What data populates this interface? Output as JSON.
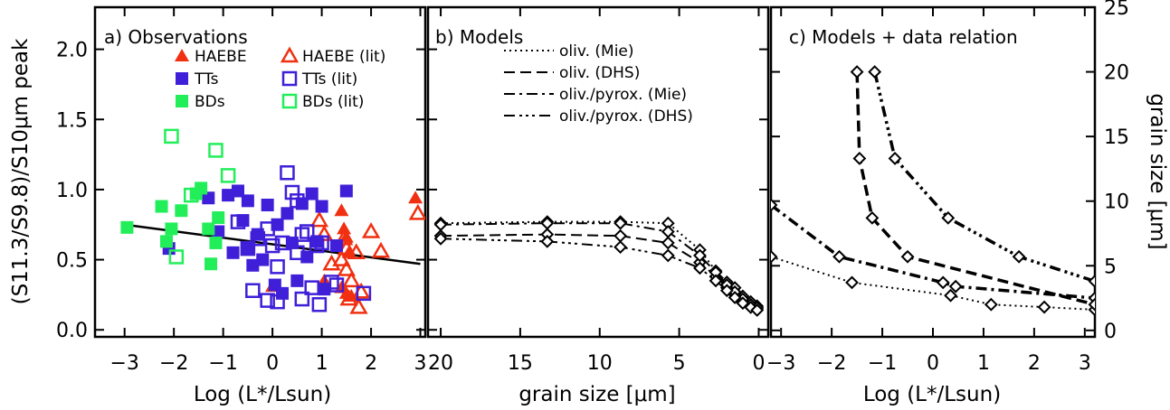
{
  "chart_data": [
    {
      "type": "scatter",
      "title": "a) Observations",
      "xlabel": "Log (L*/Lsun)",
      "ylabel": "(S11.3/S9.8)/S10μm peak",
      "xlim": [
        -3.6,
        3.1
      ],
      "ylim": [
        -0.05,
        2.3
      ],
      "xticks": [
        -3,
        -2,
        -1,
        0,
        1,
        2,
        3
      ],
      "yticks": [
        0.0,
        0.5,
        1.0,
        1.5,
        2.0
      ],
      "legend_position": "top",
      "fit_line": {
        "x": [
          -3.0,
          3.0
        ],
        "y": [
          0.75,
          0.47
        ]
      },
      "series": [
        {
          "name": "HAEBE",
          "marker": "filled-triangle",
          "color": "#f03010",
          "x": [
            1.4,
            1.45,
            1.5,
            2.9,
            1.05,
            0.0,
            1.4,
            1.5,
            1.6,
            1.55
          ],
          "y": [
            0.85,
            0.72,
            0.66,
            0.94,
            0.35,
            0.31,
            0.3,
            0.26,
            0.24,
            0.55
          ]
        },
        {
          "name": "HAEBE (lit)",
          "marker": "open-triangle",
          "color": "#f03010",
          "x": [
            0.95,
            1.05,
            1.45,
            1.5,
            1.7,
            2.2,
            2.0,
            2.95,
            1.2,
            1.4,
            1.5,
            1.6,
            1.8,
            1.75,
            1.55
          ],
          "y": [
            0.78,
            0.68,
            0.65,
            0.58,
            0.55,
            0.56,
            0.7,
            0.83,
            0.47,
            0.5,
            0.43,
            0.35,
            0.27,
            0.16,
            0.22
          ]
        },
        {
          "name": "TTs",
          "marker": "filled-square",
          "color": "#3f1fd8",
          "x": [
            -1.3,
            -0.9,
            -0.7,
            -0.5,
            -0.1,
            0.1,
            0.3,
            0.6,
            0.8,
            1.0,
            1.5,
            -0.3,
            0.4,
            -0.5,
            -0.8,
            -1.1,
            -2.1,
            0.05,
            0.2,
            1.05,
            -0.2,
            0.7,
            1.3,
            -0.6,
            0.5,
            0.9,
            -0.4
          ],
          "y": [
            0.94,
            0.96,
            0.99,
            0.92,
            0.89,
            0.75,
            0.83,
            0.9,
            0.97,
            0.88,
            0.99,
            0.68,
            0.62,
            0.58,
            0.55,
            0.7,
            0.58,
            0.32,
            0.26,
            0.29,
            0.5,
            0.52,
            0.6,
            0.78,
            0.35,
            0.63,
            0.46
          ]
        },
        {
          "name": "TTs (lit)",
          "marker": "open-square",
          "color": "#3f1fd8",
          "x": [
            0.3,
            0.4,
            0.5,
            -0.1,
            -0.3,
            0.7,
            -0.7,
            0.0,
            0.2,
            0.6,
            0.9,
            1.0,
            -0.5,
            0.1,
            0.5,
            0.8,
            0.6,
            1.2,
            1.3,
            1.85,
            0.95,
            -0.4,
            -0.1,
            0.1
          ],
          "y": [
            1.12,
            0.98,
            0.92,
            0.72,
            0.65,
            0.7,
            0.77,
            0.6,
            0.62,
            0.68,
            0.6,
            0.62,
            0.58,
            0.45,
            0.55,
            0.3,
            0.22,
            0.34,
            0.32,
            0.26,
            0.18,
            0.28,
            0.21,
            0.2
          ]
        },
        {
          "name": "BDs",
          "marker": "filled-square",
          "color": "#22ee5a",
          "x": [
            -2.95,
            -2.25,
            -1.85,
            -1.55,
            -1.3,
            -1.25,
            -2.15,
            -1.1,
            -1.15,
            -1.45,
            -2.05
          ],
          "y": [
            0.73,
            0.88,
            0.85,
            0.97,
            0.72,
            0.47,
            0.63,
            0.8,
            0.62,
            1.01,
            0.72
          ]
        },
        {
          "name": "BDs (lit)",
          "marker": "open-square",
          "color": "#22ee5a",
          "x": [
            -2.05,
            -1.15,
            -0.9,
            -1.65,
            -1.95
          ],
          "y": [
            1.38,
            1.28,
            1.1,
            0.96,
            0.52
          ]
        }
      ]
    },
    {
      "type": "line",
      "title": "b) Models",
      "xlabel": "grain size [μm]",
      "xlim": [
        20.8,
        -0.6
      ],
      "ylim": [
        -0.05,
        2.3
      ],
      "xticks": [
        20,
        15,
        10,
        5,
        0
      ],
      "legend_position": "top-right",
      "series": [
        {
          "name": "oliv. (Mie)",
          "x": [
            20,
            13.3,
            8.7,
            5.7,
            3.7,
            2.7,
            2.0,
            1.5,
            1.0,
            0.5,
            0.1
          ],
          "y": [
            0.76,
            0.77,
            0.77,
            0.76,
            0.57,
            0.42,
            0.34,
            0.3,
            0.24,
            0.2,
            0.17
          ]
        },
        {
          "name": "oliv. (DHS)",
          "x": [
            20,
            13.3,
            8.7,
            5.7,
            3.7,
            2.7,
            2.0,
            1.5,
            1.0,
            0.5,
            0.1
          ],
          "y": [
            0.67,
            0.68,
            0.67,
            0.62,
            0.48,
            0.38,
            0.3,
            0.25,
            0.2,
            0.17,
            0.15
          ]
        },
        {
          "name": "oliv./pyrox. (Mie)",
          "x": [
            20,
            13.3,
            8.7,
            5.7,
            3.7,
            2.7,
            2.0,
            1.5,
            1.0,
            0.5,
            0.1
          ],
          "y": [
            0.75,
            0.76,
            0.76,
            0.7,
            0.53,
            0.41,
            0.32,
            0.27,
            0.22,
            0.18,
            0.16
          ]
        },
        {
          "name": "oliv./pyrox. (DHS)",
          "x": [
            20,
            13.3,
            8.7,
            5.7,
            3.7,
            2.7,
            2.0,
            1.5,
            1.0,
            0.5,
            0.1
          ],
          "y": [
            0.65,
            0.63,
            0.59,
            0.53,
            0.44,
            0.35,
            0.28,
            0.23,
            0.19,
            0.16,
            0.14
          ]
        }
      ]
    },
    {
      "type": "line",
      "title": "c) Models + data relation",
      "xlabel": "Log (L*/Lsun)",
      "ylabel": "grain size [μm]",
      "xlim": [
        -3.2,
        3.2
      ],
      "ylim": [
        -0.5,
        25
      ],
      "xticks": [
        -3,
        -2,
        -1,
        0,
        1,
        2,
        3
      ],
      "yticks": [
        0,
        5,
        10,
        15,
        20,
        25
      ],
      "series": [
        {
          "style": "dotted",
          "x": [
            -3.2,
            -1.6,
            0.35,
            1.15,
            2.2,
            3.2
          ],
          "y": [
            5.7,
            3.7,
            2.7,
            2.0,
            1.8,
            1.6
          ]
        },
        {
          "style": "dash-dot",
          "x": [
            -3.2,
            -1.85,
            0.2,
            0.45,
            3.2
          ],
          "y": [
            9.7,
            5.7,
            3.7,
            3.4,
            2.5
          ]
        },
        {
          "style": "dashed",
          "x": [
            -1.5,
            -1.45,
            -1.2,
            -0.5,
            3.2
          ],
          "y": [
            20.0,
            13.3,
            8.7,
            5.7,
            2.0
          ]
        },
        {
          "style": "dash-dot-dot",
          "x": [
            -1.15,
            -0.75,
            0.3,
            1.7,
            3.2
          ],
          "y": [
            20.0,
            13.3,
            8.7,
            5.7,
            3.8
          ]
        }
      ]
    }
  ]
}
